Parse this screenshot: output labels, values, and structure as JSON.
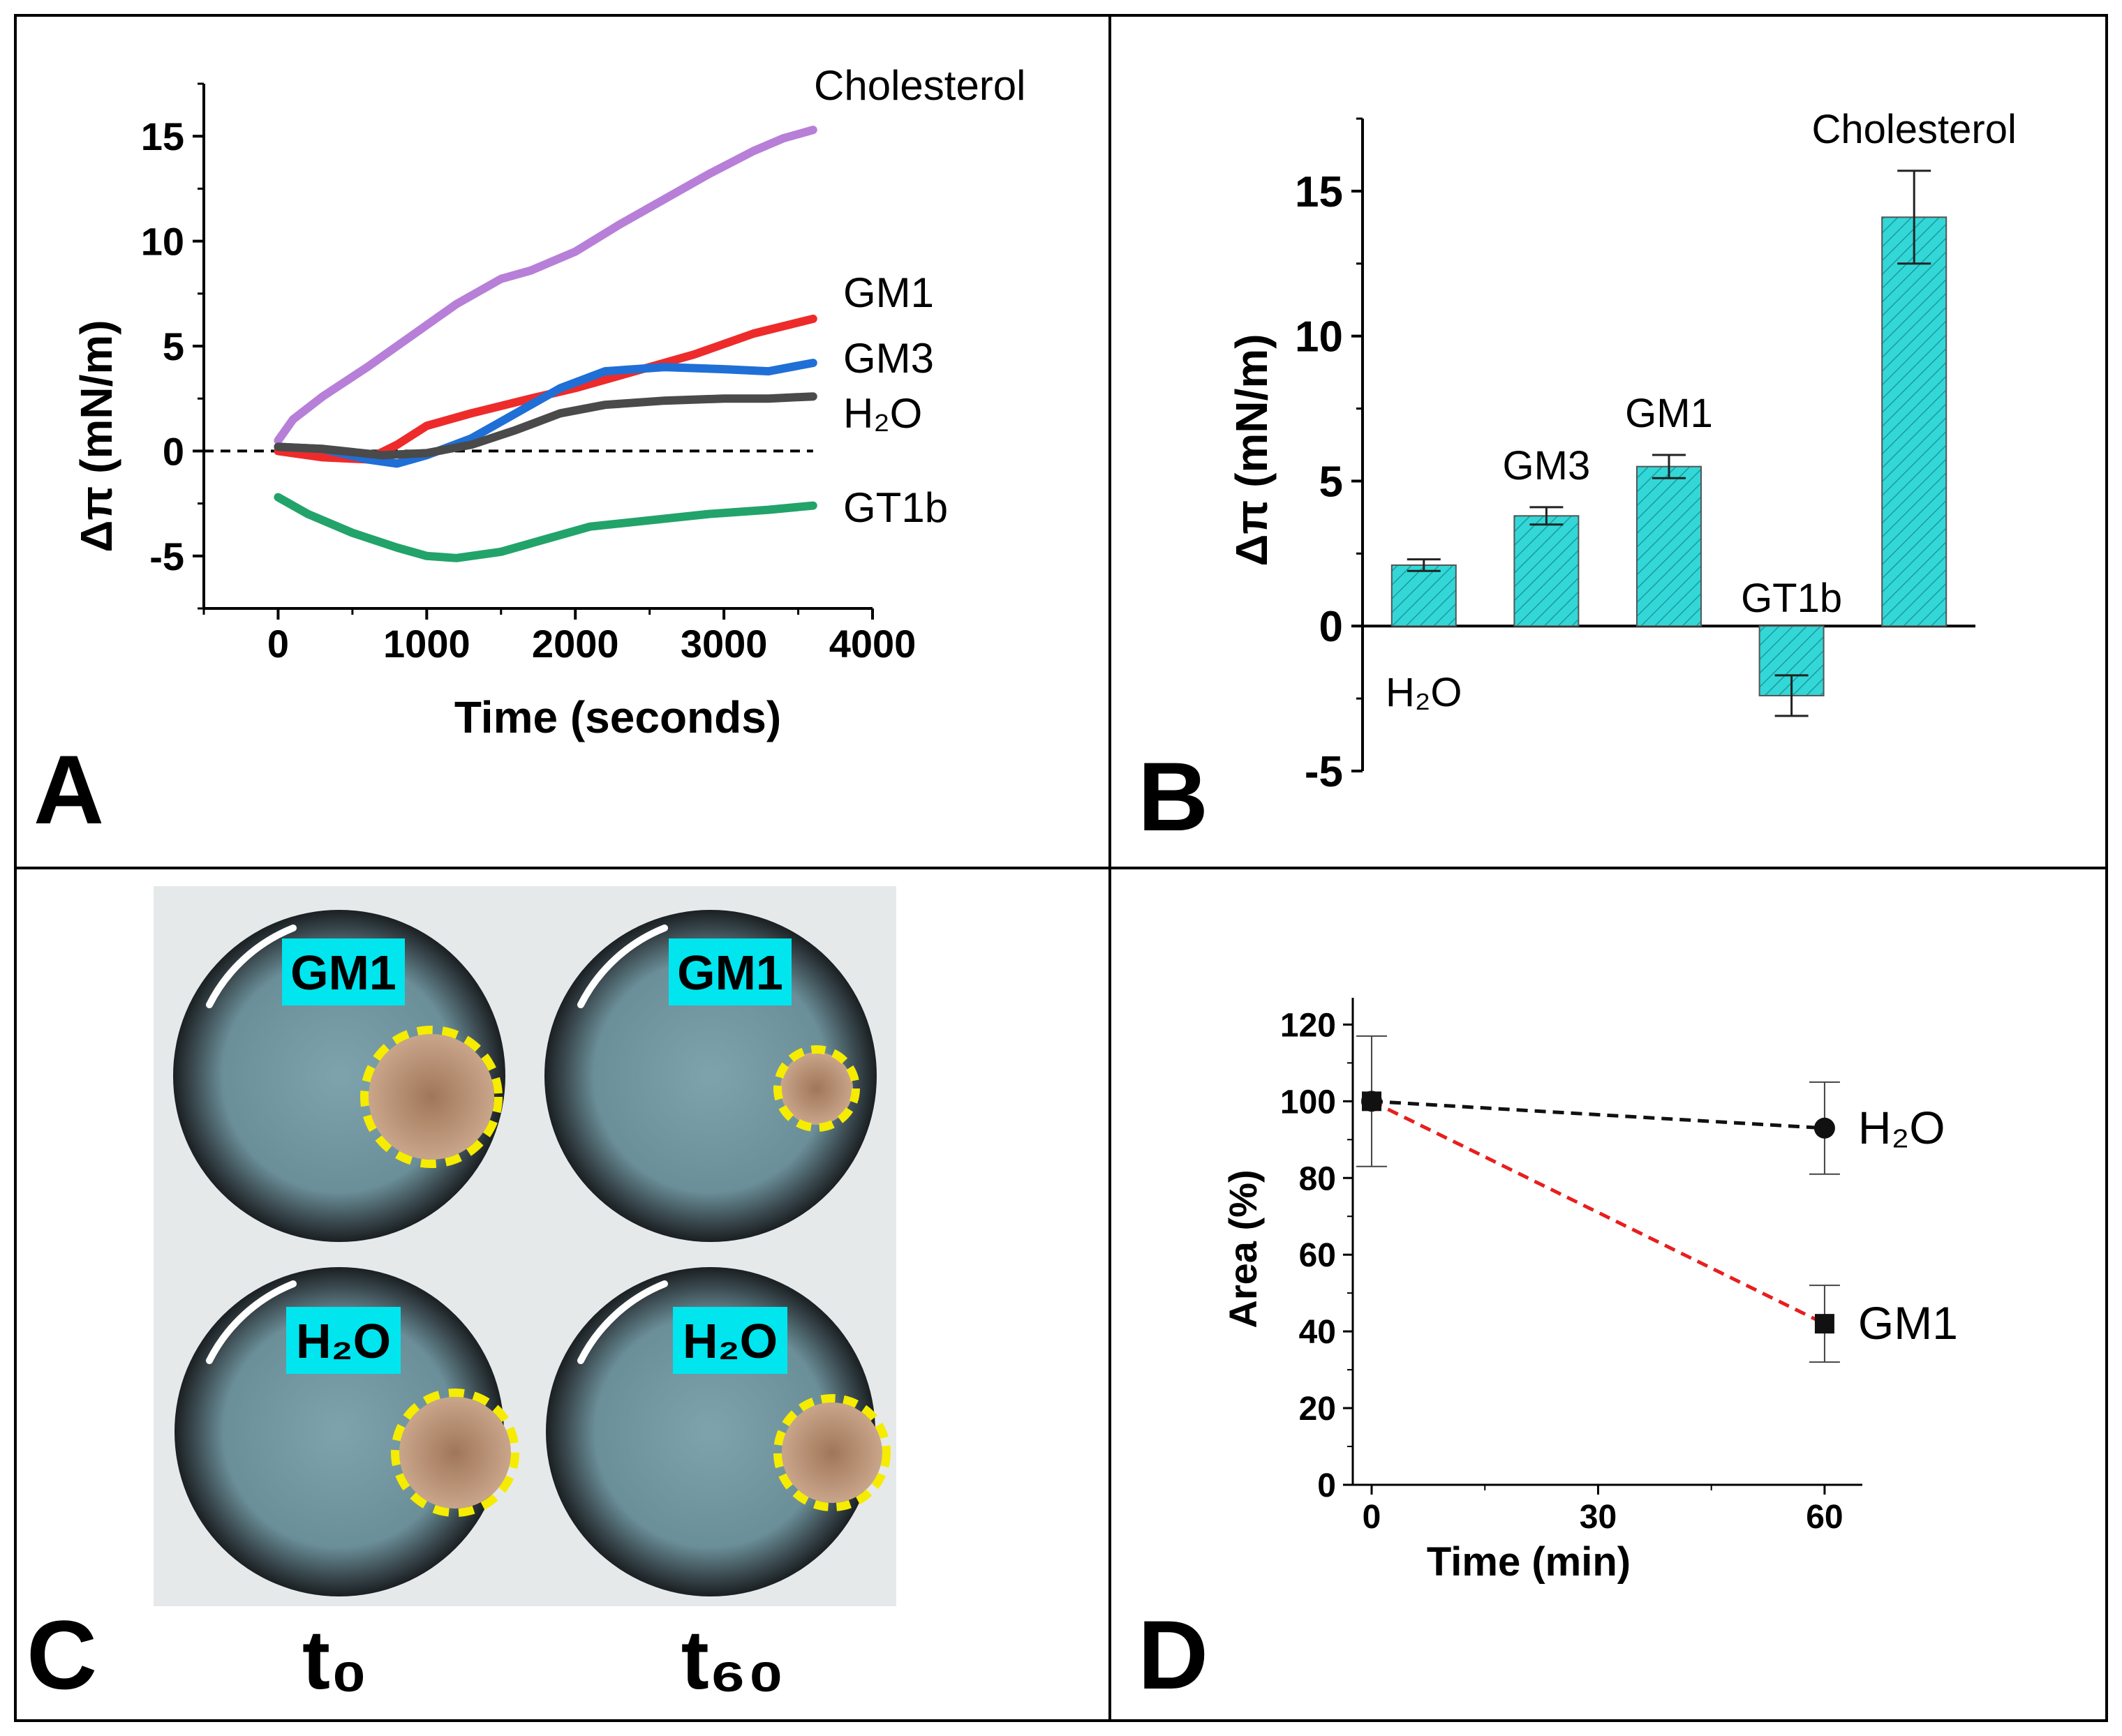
{
  "panels": {
    "a": {
      "letter": "A"
    },
    "b": {
      "letter": "B"
    },
    "c": {
      "letter": "C"
    },
    "d": {
      "letter": "D"
    }
  },
  "chart_data": [
    {
      "id": "A",
      "type": "line",
      "xlabel": "Time (seconds)",
      "ylabel": "Δπ (mN/m)",
      "xlim": [
        -500,
        4000
      ],
      "ylim": [
        -7.5,
        17.5
      ],
      "xticks": [
        0,
        1000,
        2000,
        3000,
        4000
      ],
      "yticks": [
        -5,
        0,
        5,
        10,
        15
      ],
      "reference_line": {
        "y": 0,
        "style": "dashed"
      },
      "series": [
        {
          "name": "Cholesterol",
          "color": "#b77fd8",
          "x": [
            0,
            100,
            300,
            600,
            900,
            1200,
            1500,
            1700,
            2000,
            2300,
            2600,
            2900,
            3200,
            3400,
            3600
          ],
          "y": [
            0.5,
            1.5,
            2.6,
            4.0,
            5.5,
            7.0,
            8.2,
            8.6,
            9.5,
            10.8,
            12.0,
            13.2,
            14.3,
            14.9,
            15.3
          ]
        },
        {
          "name": "GM1",
          "color": "#ee2b2b",
          "x": [
            0,
            300,
            600,
            800,
            1000,
            1300,
            1700,
            2000,
            2400,
            2800,
            3200,
            3600
          ],
          "y": [
            0,
            -0.3,
            -0.4,
            0.3,
            1.2,
            1.8,
            2.5,
            3.0,
            3.8,
            4.6,
            5.6,
            6.3
          ]
        },
        {
          "name": "GM3",
          "color": "#1f6fd6",
          "x": [
            0,
            300,
            600,
            800,
            1000,
            1300,
            1600,
            1900,
            2200,
            2600,
            3000,
            3300,
            3600
          ],
          "y": [
            0.2,
            0.1,
            -0.4,
            -0.6,
            -0.2,
            0.6,
            1.8,
            3.0,
            3.8,
            4.0,
            3.9,
            3.8,
            4.2
          ]
        },
        {
          "name": "H₂O",
          "color": "#4a4a4a",
          "x": [
            0,
            300,
            700,
            1000,
            1300,
            1600,
            1900,
            2200,
            2600,
            3000,
            3300,
            3600
          ],
          "y": [
            0.2,
            0.1,
            -0.2,
            -0.1,
            0.3,
            1.0,
            1.8,
            2.2,
            2.4,
            2.5,
            2.5,
            2.6
          ]
        },
        {
          "name": "GT1b",
          "color": "#22a36a",
          "x": [
            0,
            200,
            500,
            800,
            1000,
            1200,
            1500,
            1800,
            2100,
            2500,
            2900,
            3300,
            3600
          ],
          "y": [
            -2.2,
            -3.0,
            -3.9,
            -4.6,
            -5.0,
            -5.1,
            -4.8,
            -4.2,
            -3.6,
            -3.3,
            -3.0,
            -2.8,
            -2.6
          ]
        }
      ],
      "labels": [
        "Cholesterol",
        "GM1",
        "GM3",
        "H₂O",
        "GT1b"
      ]
    },
    {
      "id": "B",
      "type": "bar",
      "ylabel": "Δπ (mN/m)",
      "ylim": [
        -5,
        17.5
      ],
      "yticks": [
        -5,
        0,
        5,
        10,
        15
      ],
      "categories": [
        "H₂O",
        "GM3",
        "GM1",
        "GT1b",
        "Cholesterol"
      ],
      "values": [
        2.1,
        3.8,
        5.5,
        -2.4,
        14.1
      ],
      "errors": [
        0.2,
        0.3,
        0.4,
        0.7,
        1.6
      ],
      "bar_color": "#33d7d7"
    },
    {
      "id": "D",
      "type": "line",
      "xlabel": "Time (min)",
      "ylabel": "Area (%)",
      "xlim": [
        -2.5,
        65
      ],
      "ylim": [
        0,
        120
      ],
      "xticks": [
        0,
        30,
        60
      ],
      "yticks": [
        0,
        20,
        40,
        60,
        80,
        100,
        120
      ],
      "series": [
        {
          "name": "H₂O",
          "color": "#111111",
          "marker": "circle",
          "line_style": "dashed",
          "x": [
            0,
            60
          ],
          "y": [
            100,
            93
          ],
          "errors": [
            17,
            12
          ]
        },
        {
          "name": "GM1",
          "color": "#e81e1e",
          "marker": "square",
          "line_style": "dashed",
          "x": [
            0,
            60
          ],
          "y": [
            100,
            42
          ],
          "errors": [
            0,
            10
          ]
        }
      ]
    }
  ],
  "photos": {
    "tiles": [
      {
        "label": "GM1"
      },
      {
        "label": "GM1"
      },
      {
        "label": "H₂O"
      },
      {
        "label": "H₂O"
      }
    ],
    "time_labels": [
      "t₀",
      "t₆₀"
    ]
  }
}
